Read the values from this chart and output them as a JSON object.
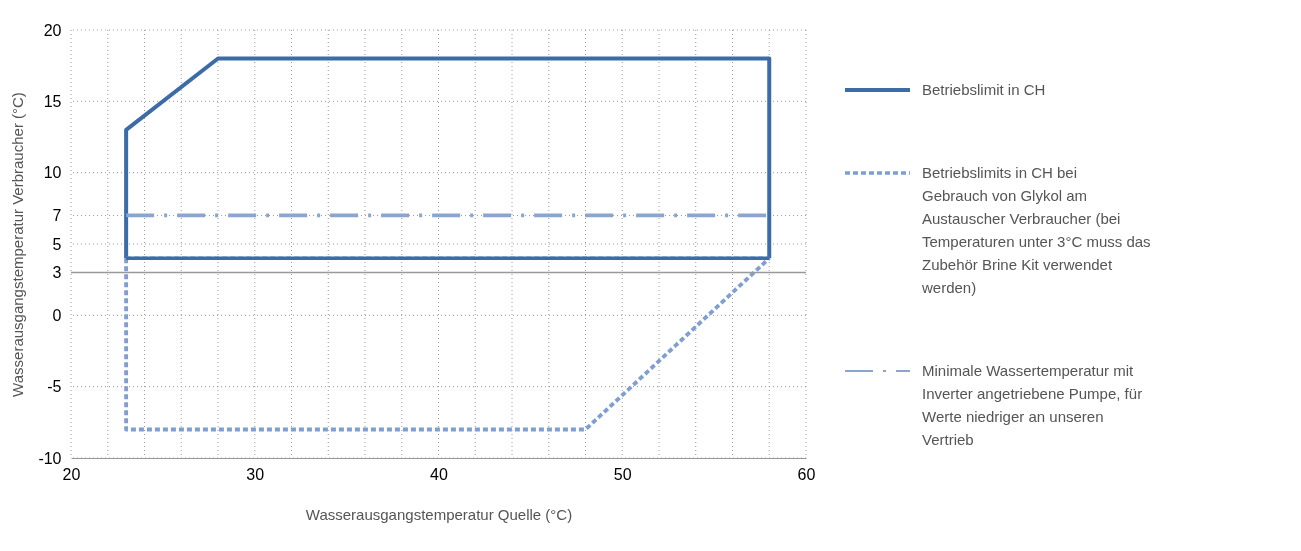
{
  "chart_data": {
    "type": "line",
    "xlabel": "Wasserausgangstemperatur Quelle (°C)",
    "ylabel": "Wasserausgangstemperatur Verbraucher (°C)",
    "xlim": [
      20,
      60
    ],
    "xticks": [
      20,
      {
        "value": 22,
        "label": null
      },
      {
        "value": 24,
        "label": null
      },
      {
        "value": 26,
        "label": null
      },
      {
        "value": 28,
        "label": null
      },
      30,
      {
        "value": 32,
        "label": null
      },
      {
        "value": 34,
        "label": null
      },
      {
        "value": 36,
        "label": null
      },
      {
        "value": 38,
        "label": null
      },
      40,
      {
        "value": 42,
        "label": null
      },
      {
        "value": 44,
        "label": null
      },
      {
        "value": 46,
        "label": null
      },
      {
        "value": 48,
        "label": null
      },
      50,
      {
        "value": 52,
        "label": null
      },
      {
        "value": 54,
        "label": null
      },
      {
        "value": 56,
        "label": null
      },
      {
        "value": 58,
        "label": null
      },
      60
    ],
    "ylim": [
      -10,
      20
    ],
    "yticks": [
      -10,
      -5,
      0,
      3,
      5,
      7,
      10,
      15,
      20
    ],
    "grid": true,
    "legend": "right",
    "ref_lines": [
      {
        "axis": "y",
        "value": 3,
        "color": "#999999"
      }
    ],
    "series": [
      {
        "name": "Betriebslimit in CH",
        "color": "#3b6ca8",
        "line_style": "solid",
        "x": [
          23,
          23,
          28,
          58,
          58
        ],
        "values": [
          4,
          13,
          18,
          18,
          4
        ]
      },
      {
        "name": "Betriebslimits in CH bei Gebrauch von Glykol am Austauscher Verbraucher (bei Temperaturen unter 3°C muss das Zubehör Brine Kit verwendet werden)",
        "color": "#7f9fd3",
        "line_style": "dashed",
        "x": [
          23,
          23,
          48,
          58
        ],
        "values": [
          4,
          -8,
          -8,
          4
        ]
      },
      {
        "name": "Minimale Wassertemperatur mit Inverter angetriebene Pumpe, für Werte niedriger an unseren Vertrieb",
        "color": "#8ba5cf",
        "line_style": "dashdot",
        "x": [
          23,
          58
        ],
        "values": [
          7,
          7
        ]
      },
      {
        "color": "#7f9fd3",
        "line_style": "dashed",
        "x": [
          23,
          58
        ],
        "values": [
          4,
          4
        ]
      },
      {
        "color": "#3b6ca8",
        "line_style": "solid",
        "x": [
          23,
          58
        ],
        "values": [
          4,
          4
        ]
      }
    ]
  }
}
